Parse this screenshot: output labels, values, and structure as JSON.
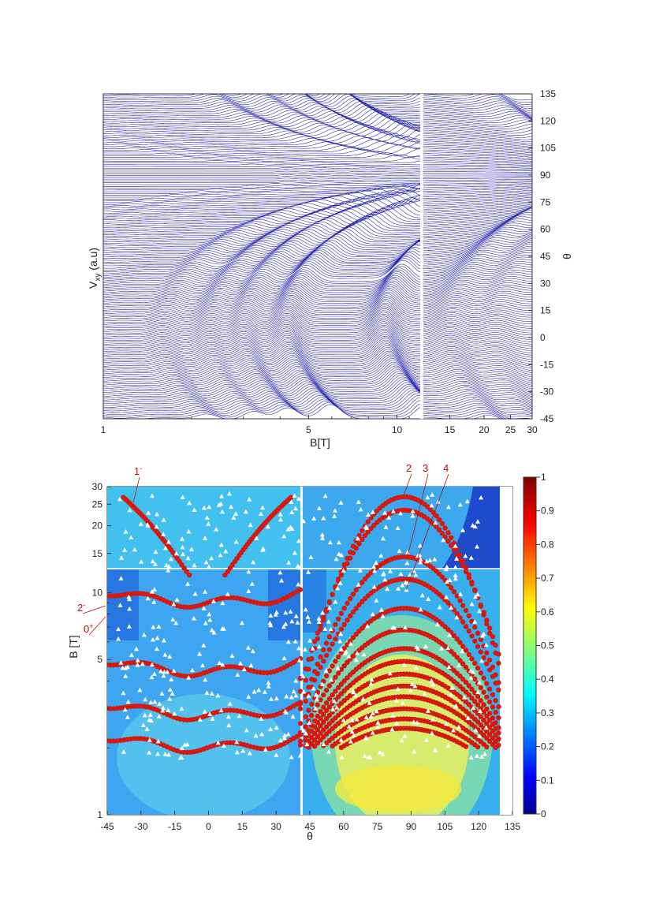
{
  "chart_data": [
    {
      "type": "line",
      "panel": "top",
      "xlabel": "B[T]",
      "ylabel_left": "V_xy (a.u)",
      "ylabel_left_main": "V",
      "ylabel_left_sub": "xy",
      "ylabel_left_rest": " (a.u)",
      "ylabel_right": "θ",
      "x_scale": "log",
      "xlim": [
        1,
        30
      ],
      "x_break_at": 12,
      "x_ticks": [
        "1",
        "5",
        "10",
        "15",
        "20",
        "25",
        "30"
      ],
      "x_tick_values": [
        1,
        5,
        10,
        15,
        20,
        25,
        30
      ],
      "right_axis_range": [
        -45,
        135
      ],
      "right_ticks": [
        "135",
        "120",
        "105",
        "90",
        "75",
        "60",
        "45",
        "30",
        "15",
        "0",
        "-15",
        "-30",
        "-45"
      ],
      "right_tick_values": [
        135,
        120,
        105,
        90,
        75,
        60,
        45,
        30,
        15,
        0,
        -15,
        -30,
        -45
      ],
      "curve_color": "#1a1aa8",
      "theta_step_deg": 1,
      "theta_range": [
        -45,
        135
      ]
    },
    {
      "type": "heatmap",
      "panel": "bottom",
      "xlabel": "θ",
      "ylabel": "B [T]",
      "x_scale": "linear",
      "y_scale": "log",
      "xlim": [
        -45,
        135
      ],
      "ylim": [
        1,
        30
      ],
      "x_break_at": 42,
      "x_ticks": [
        "-45",
        "-30",
        "-15",
        "0",
        "15",
        "30",
        "45",
        "60",
        "75",
        "90",
        "105",
        "120",
        "135"
      ],
      "x_tick_values": [
        -45,
        -30,
        -15,
        0,
        15,
        30,
        45,
        60,
        75,
        90,
        105,
        120,
        135
      ],
      "y_ticks": [
        "1",
        "5",
        "10",
        "15",
        "20",
        "25",
        "30"
      ],
      "y_tick_values": [
        1,
        5,
        10,
        15,
        20,
        25,
        30
      ],
      "colorbar": {
        "range": [
          0,
          1
        ],
        "ticks": [
          "1",
          "0.9",
          "0.8",
          "0.7",
          "0.6",
          "0.5",
          "0.4",
          "0.3",
          "0.2",
          "0.1",
          "0"
        ],
        "tick_values": [
          1,
          0.9,
          0.8,
          0.7,
          0.6,
          0.5,
          0.4,
          0.3,
          0.2,
          0.1,
          0
        ],
        "colormap": "jet"
      },
      "marker_colors": {
        "calculated": "#d41a10",
        "measured": "#ffffff"
      },
      "annotations": [
        {
          "main": "1",
          "sup": "-",
          "theta": -31,
          "B": 16
        },
        {
          "main": "2",
          "sup": "",
          "theta": 90,
          "B": 23
        },
        {
          "main": "3",
          "sup": "",
          "theta": 90,
          "B": 14
        },
        {
          "main": "4",
          "sup": "",
          "theta": 90,
          "B": 6.8
        },
        {
          "main": "2",
          "sup": "-",
          "theta": -45,
          "B": 7.6
        },
        {
          "main": "0",
          "sup": "+",
          "theta": -45,
          "B": 7.0
        }
      ],
      "level_branches_low": [
        {
          "name": "",
          "B_center": 9.0
        },
        {
          "name": "",
          "B_center": 4.4
        },
        {
          "name": "",
          "B_center": 2.8
        },
        {
          "name": "",
          "B_center": 2.0
        }
      ],
      "level_branches_high": [
        {
          "B_apex": 27
        },
        {
          "B_apex": 23.5
        },
        {
          "B_apex": 14.5
        },
        {
          "B_apex": 11.5
        },
        {
          "B_apex": 8.5
        },
        {
          "B_apex": 6.8
        },
        {
          "B_apex": 5.6
        },
        {
          "B_apex": 4.9
        },
        {
          "B_apex": 4.3
        },
        {
          "B_apex": 3.8
        },
        {
          "B_apex": 3.4
        },
        {
          "B_apex": 3.0
        },
        {
          "B_apex": 2.7
        },
        {
          "B_apex": 2.45
        }
      ]
    }
  ]
}
